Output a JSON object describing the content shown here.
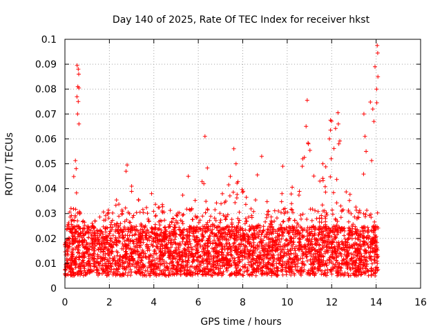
{
  "chart_data": {
    "type": "scatter",
    "title": "Day 140 of 2025, Rate Of TEC Index for receiver hkst",
    "xlabel": "GPS time / hours",
    "ylabel": "ROTI / TECUs",
    "xlim": [
      0,
      16
    ],
    "ylim": [
      0,
      0.1
    ],
    "xticks": [
      0,
      2,
      4,
      6,
      8,
      10,
      12,
      14,
      16
    ],
    "yticks": [
      0,
      0.01,
      0.02,
      0.03,
      0.04,
      0.05,
      0.06,
      0.07,
      0.08,
      0.09,
      0.1
    ],
    "xtick_labels": [
      "0",
      "2",
      "4",
      "6",
      "8",
      "10",
      "12",
      "14",
      "16"
    ],
    "ytick_labels": [
      "0",
      "0.01",
      "0.02",
      "0.03",
      "0.04",
      "0.05",
      "0.06",
      "0.07",
      "0.08",
      "0.09",
      "0.1"
    ],
    "grid": true,
    "marker": "+",
    "series": [
      {
        "name": "ROTI",
        "color": "#ff0000",
        "x_range": [
          0.0,
          14.1
        ],
        "baseline_range": [
          0.005,
          0.025
        ],
        "envelope": [
          [
            0.0,
            0.026
          ],
          [
            0.2,
            0.03
          ],
          [
            0.4,
            0.05
          ],
          [
            0.55,
            0.09
          ],
          [
            0.62,
            0.088
          ],
          [
            0.7,
            0.03
          ],
          [
            1.0,
            0.025
          ],
          [
            1.5,
            0.028
          ],
          [
            2.0,
            0.035
          ],
          [
            2.5,
            0.038
          ],
          [
            2.8,
            0.048
          ],
          [
            3.0,
            0.04
          ],
          [
            3.5,
            0.035
          ],
          [
            4.0,
            0.036
          ],
          [
            4.5,
            0.033
          ],
          [
            5.0,
            0.03
          ],
          [
            5.5,
            0.044
          ],
          [
            6.0,
            0.035
          ],
          [
            6.3,
            0.061
          ],
          [
            6.6,
            0.035
          ],
          [
            7.0,
            0.038
          ],
          [
            7.5,
            0.05
          ],
          [
            7.8,
            0.045
          ],
          [
            8.0,
            0.04
          ],
          [
            8.5,
            0.042
          ],
          [
            8.9,
            0.053
          ],
          [
            9.3,
            0.04
          ],
          [
            9.8,
            0.048
          ],
          [
            10.2,
            0.042
          ],
          [
            10.6,
            0.055
          ],
          [
            10.9,
            0.075
          ],
          [
            11.2,
            0.045
          ],
          [
            11.6,
            0.05
          ],
          [
            12.0,
            0.068
          ],
          [
            12.3,
            0.07
          ],
          [
            12.7,
            0.043
          ],
          [
            13.0,
            0.04
          ],
          [
            13.3,
            0.04
          ],
          [
            13.6,
            0.07
          ],
          [
            13.9,
            0.089
          ],
          [
            14.1,
            0.098
          ]
        ],
        "highlights": [
          {
            "x": 0.55,
            "y": 0.0895
          },
          {
            "x": 0.6,
            "y": 0.088
          },
          {
            "x": 0.62,
            "y": 0.086
          },
          {
            "x": 0.58,
            "y": 0.081
          },
          {
            "x": 0.6,
            "y": 0.075
          },
          {
            "x": 0.57,
            "y": 0.07
          },
          {
            "x": 0.63,
            "y": 0.066
          },
          {
            "x": 2.8,
            "y": 0.0495
          },
          {
            "x": 2.75,
            "y": 0.047
          },
          {
            "x": 3.0,
            "y": 0.041
          },
          {
            "x": 3.9,
            "y": 0.038
          },
          {
            "x": 5.55,
            "y": 0.045
          },
          {
            "x": 6.3,
            "y": 0.061
          },
          {
            "x": 6.25,
            "y": 0.042
          },
          {
            "x": 7.6,
            "y": 0.056
          },
          {
            "x": 7.7,
            "y": 0.05
          },
          {
            "x": 8.85,
            "y": 0.053
          },
          {
            "x": 9.8,
            "y": 0.049
          },
          {
            "x": 10.9,
            "y": 0.0755
          },
          {
            "x": 10.85,
            "y": 0.065
          },
          {
            "x": 10.95,
            "y": 0.058
          },
          {
            "x": 10.7,
            "y": 0.052
          },
          {
            "x": 11.6,
            "y": 0.05
          },
          {
            "x": 11.95,
            "y": 0.0675
          },
          {
            "x": 11.95,
            "y": 0.0635
          },
          {
            "x": 11.9,
            "y": 0.06
          },
          {
            "x": 12.28,
            "y": 0.0705
          },
          {
            "x": 12.3,
            "y": 0.066
          },
          {
            "x": 12.32,
            "y": 0.058
          },
          {
            "x": 13.45,
            "y": 0.07
          },
          {
            "x": 13.5,
            "y": 0.061
          },
          {
            "x": 13.55,
            "y": 0.055
          },
          {
            "x": 13.85,
            "y": 0.072
          },
          {
            "x": 13.9,
            "y": 0.067
          },
          {
            "x": 13.95,
            "y": 0.089
          },
          {
            "x": 14.05,
            "y": 0.0975
          },
          {
            "x": 14.07,
            "y": 0.0945
          },
          {
            "x": 14.08,
            "y": 0.085
          },
          {
            "x": 14.02,
            "y": 0.08
          }
        ]
      }
    ]
  }
}
